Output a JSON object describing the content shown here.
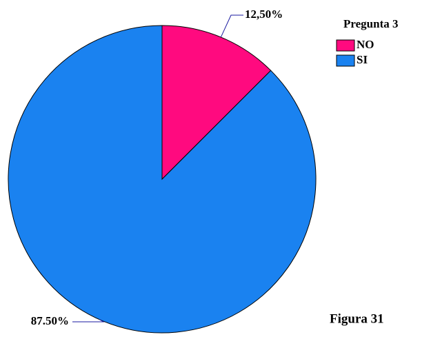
{
  "chart_data": {
    "type": "pie",
    "legend_title": "Pregunta 3",
    "categories": [
      "NO",
      "SI"
    ],
    "values": [
      12.5,
      87.5
    ],
    "value_labels": [
      "12,50%",
      "87.50%"
    ],
    "colors": [
      "#ff0a7f",
      "#1a82f0"
    ],
    "annotation": "Figura 31",
    "legend": "upper right"
  }
}
